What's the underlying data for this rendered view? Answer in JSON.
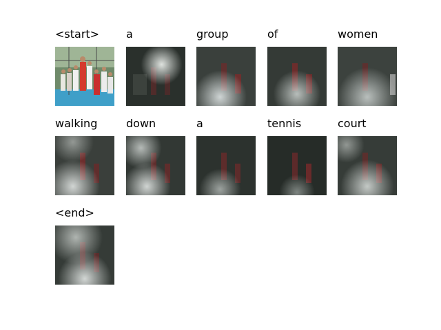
{
  "caption_tokens": [
    {
      "word": "<start>",
      "view": "original"
    },
    {
      "word": "a",
      "view": "attention"
    },
    {
      "word": "group",
      "view": "attention"
    },
    {
      "word": "of",
      "view": "attention"
    },
    {
      "word": "women",
      "view": "attention"
    },
    {
      "word": "walking",
      "view": "attention"
    },
    {
      "word": "down",
      "view": "attention"
    },
    {
      "word": "a",
      "view": "attention"
    },
    {
      "word": "tennis",
      "view": "attention"
    },
    {
      "word": "court",
      "view": "attention"
    },
    {
      "word": "<end>",
      "view": "attention"
    }
  ],
  "grid": {
    "columns": 5
  }
}
